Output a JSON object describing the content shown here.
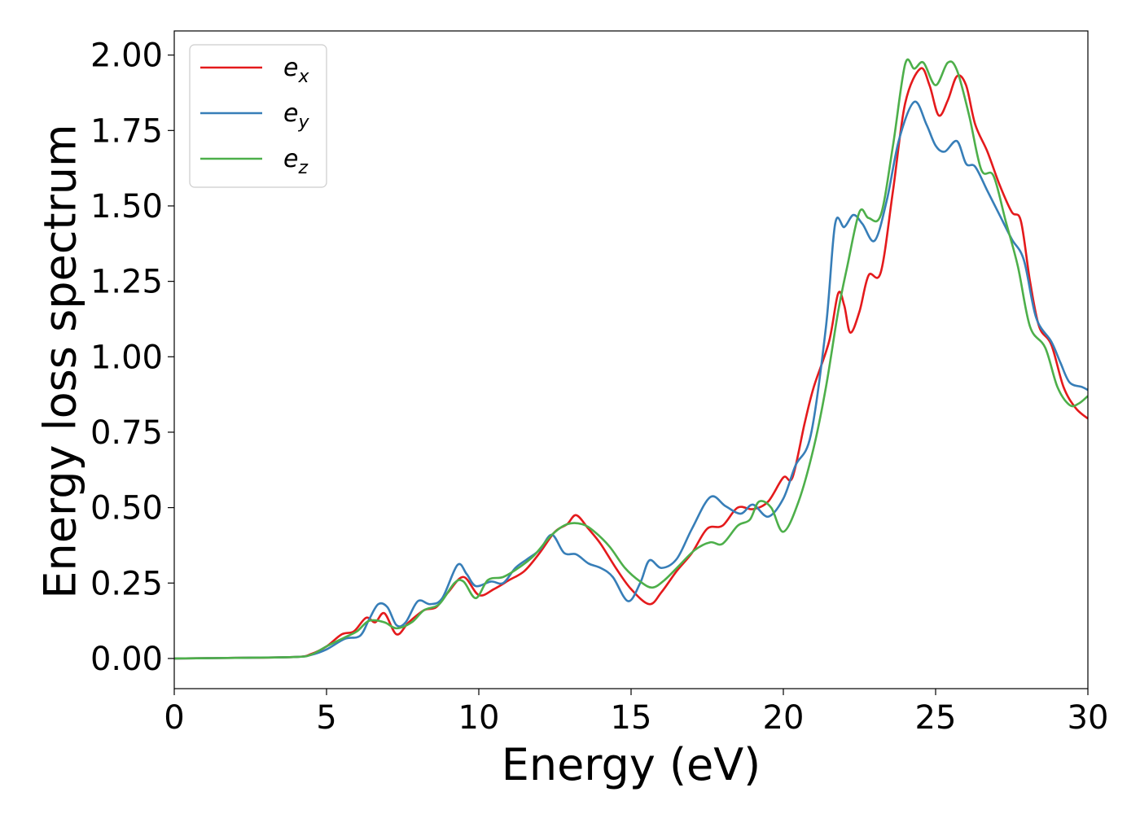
{
  "chart_data": {
    "type": "line",
    "title": "",
    "xlabel": "Energy (eV)",
    "ylabel": "Energy loss spectrum",
    "xlim": [
      0,
      30
    ],
    "ylim": [
      -0.1,
      2.08
    ],
    "xticks": [
      0,
      5,
      10,
      15,
      20,
      25,
      30
    ],
    "yticks": [
      0.0,
      0.25,
      0.5,
      0.75,
      1.0,
      1.25,
      1.5,
      1.75,
      2.0
    ],
    "xtick_labels": [
      "0",
      "5",
      "10",
      "15",
      "20",
      "25",
      "30"
    ],
    "ytick_labels": [
      "0.00",
      "0.25",
      "0.50",
      "0.75",
      "1.00",
      "1.25",
      "1.50",
      "1.75",
      "2.00"
    ],
    "grid": false,
    "legend_position": "top-left",
    "series": [
      {
        "name": "ex",
        "legend_base": "e",
        "legend_sub": "x",
        "color": "#e41a1c",
        "points": [
          [
            0,
            0
          ],
          [
            2,
            0.002
          ],
          [
            4,
            0.005
          ],
          [
            4.5,
            0.015
          ],
          [
            5,
            0.04
          ],
          [
            5.5,
            0.08
          ],
          [
            5.9,
            0.09
          ],
          [
            6.3,
            0.135
          ],
          [
            6.6,
            0.12
          ],
          [
            6.9,
            0.15
          ],
          [
            7.3,
            0.08
          ],
          [
            7.7,
            0.12
          ],
          [
            8.2,
            0.16
          ],
          [
            8.6,
            0.17
          ],
          [
            9,
            0.22
          ],
          [
            9.5,
            0.27
          ],
          [
            10,
            0.21
          ],
          [
            10.5,
            0.23
          ],
          [
            11,
            0.26
          ],
          [
            11.5,
            0.29
          ],
          [
            12,
            0.35
          ],
          [
            12.5,
            0.42
          ],
          [
            12.9,
            0.445
          ],
          [
            13.2,
            0.475
          ],
          [
            13.6,
            0.43
          ],
          [
            14,
            0.38
          ],
          [
            14.5,
            0.3
          ],
          [
            15,
            0.23
          ],
          [
            15.6,
            0.18
          ],
          [
            16,
            0.22
          ],
          [
            16.5,
            0.29
          ],
          [
            17,
            0.35
          ],
          [
            17.5,
            0.43
          ],
          [
            18,
            0.44
          ],
          [
            18.5,
            0.5
          ],
          [
            19,
            0.495
          ],
          [
            19.5,
            0.52
          ],
          [
            20,
            0.6
          ],
          [
            20.3,
            0.6
          ],
          [
            20.7,
            0.78
          ],
          [
            21,
            0.9
          ],
          [
            21.5,
            1.05
          ],
          [
            21.8,
            1.21
          ],
          [
            22,
            1.17
          ],
          [
            22.2,
            1.08
          ],
          [
            22.5,
            1.15
          ],
          [
            22.8,
            1.27
          ],
          [
            23.2,
            1.28
          ],
          [
            23.6,
            1.55
          ],
          [
            24,
            1.84
          ],
          [
            24.5,
            1.955
          ],
          [
            24.8,
            1.9
          ],
          [
            25.1,
            1.8
          ],
          [
            25.4,
            1.85
          ],
          [
            25.7,
            1.93
          ],
          [
            26,
            1.9
          ],
          [
            26.3,
            1.77
          ],
          [
            26.7,
            1.68
          ],
          [
            27.1,
            1.57
          ],
          [
            27.5,
            1.48
          ],
          [
            27.8,
            1.45
          ],
          [
            28.1,
            1.25
          ],
          [
            28.4,
            1.1
          ],
          [
            28.8,
            1.04
          ],
          [
            29.2,
            0.9
          ],
          [
            29.6,
            0.83
          ],
          [
            30,
            0.795
          ]
        ]
      },
      {
        "name": "ey",
        "legend_base": "e",
        "legend_sub": "y",
        "color": "#377eb8",
        "points": [
          [
            0,
            0
          ],
          [
            2,
            0.002
          ],
          [
            4,
            0.005
          ],
          [
            4.5,
            0.012
          ],
          [
            5,
            0.03
          ],
          [
            5.6,
            0.065
          ],
          [
            6.1,
            0.075
          ],
          [
            6.4,
            0.13
          ],
          [
            6.7,
            0.18
          ],
          [
            7.0,
            0.17
          ],
          [
            7.3,
            0.11
          ],
          [
            7.6,
            0.12
          ],
          [
            8.0,
            0.19
          ],
          [
            8.4,
            0.18
          ],
          [
            8.8,
            0.2
          ],
          [
            9.3,
            0.31
          ],
          [
            9.6,
            0.28
          ],
          [
            9.9,
            0.24
          ],
          [
            10.4,
            0.255
          ],
          [
            10.8,
            0.25
          ],
          [
            11.2,
            0.3
          ],
          [
            11.6,
            0.33
          ],
          [
            12,
            0.36
          ],
          [
            12.4,
            0.41
          ],
          [
            12.8,
            0.35
          ],
          [
            13.2,
            0.345
          ],
          [
            13.6,
            0.315
          ],
          [
            14.0,
            0.3
          ],
          [
            14.4,
            0.27
          ],
          [
            14.9,
            0.19
          ],
          [
            15.3,
            0.25
          ],
          [
            15.6,
            0.325
          ],
          [
            16.0,
            0.3
          ],
          [
            16.5,
            0.33
          ],
          [
            17.0,
            0.43
          ],
          [
            17.6,
            0.535
          ],
          [
            18.1,
            0.505
          ],
          [
            18.6,
            0.48
          ],
          [
            19.0,
            0.51
          ],
          [
            19.5,
            0.47
          ],
          [
            20.0,
            0.53
          ],
          [
            20.4,
            0.64
          ],
          [
            20.9,
            0.74
          ],
          [
            21.4,
            1.1
          ],
          [
            21.7,
            1.44
          ],
          [
            22.0,
            1.43
          ],
          [
            22.3,
            1.47
          ],
          [
            22.6,
            1.44
          ],
          [
            23.0,
            1.385
          ],
          [
            23.4,
            1.52
          ],
          [
            23.8,
            1.72
          ],
          [
            24.3,
            1.845
          ],
          [
            24.7,
            1.77
          ],
          [
            25.0,
            1.7
          ],
          [
            25.3,
            1.68
          ],
          [
            25.7,
            1.715
          ],
          [
            26.0,
            1.64
          ],
          [
            26.3,
            1.63
          ],
          [
            26.7,
            1.55
          ],
          [
            27.1,
            1.47
          ],
          [
            27.5,
            1.39
          ],
          [
            27.9,
            1.32
          ],
          [
            28.3,
            1.13
          ],
          [
            28.8,
            1.05
          ],
          [
            29.1,
            0.98
          ],
          [
            29.4,
            0.915
          ],
          [
            29.8,
            0.9
          ],
          [
            30,
            0.89
          ]
        ]
      },
      {
        "name": "ez",
        "legend_base": "e",
        "legend_sub": "z",
        "color": "#4daf4a",
        "points": [
          [
            0,
            0
          ],
          [
            2,
            0.002
          ],
          [
            4,
            0.005
          ],
          [
            4.5,
            0.013
          ],
          [
            5,
            0.04
          ],
          [
            5.6,
            0.07
          ],
          [
            6.0,
            0.09
          ],
          [
            6.4,
            0.125
          ],
          [
            6.9,
            0.12
          ],
          [
            7.3,
            0.1
          ],
          [
            7.8,
            0.12
          ],
          [
            8.2,
            0.16
          ],
          [
            8.7,
            0.18
          ],
          [
            9.2,
            0.25
          ],
          [
            9.5,
            0.255
          ],
          [
            9.9,
            0.2
          ],
          [
            10.3,
            0.26
          ],
          [
            10.8,
            0.27
          ],
          [
            11.3,
            0.3
          ],
          [
            11.8,
            0.34
          ],
          [
            12.4,
            0.41
          ],
          [
            12.9,
            0.445
          ],
          [
            13.4,
            0.445
          ],
          [
            13.8,
            0.42
          ],
          [
            14.3,
            0.37
          ],
          [
            14.8,
            0.3
          ],
          [
            15.3,
            0.255
          ],
          [
            15.7,
            0.235
          ],
          [
            16.1,
            0.26
          ],
          [
            16.6,
            0.31
          ],
          [
            17.1,
            0.36
          ],
          [
            17.6,
            0.385
          ],
          [
            18.0,
            0.38
          ],
          [
            18.5,
            0.44
          ],
          [
            18.9,
            0.46
          ],
          [
            19.2,
            0.52
          ],
          [
            19.6,
            0.5
          ],
          [
            20.0,
            0.42
          ],
          [
            20.5,
            0.52
          ],
          [
            21.0,
            0.7
          ],
          [
            21.4,
            0.9
          ],
          [
            21.8,
            1.15
          ],
          [
            22.1,
            1.3
          ],
          [
            22.5,
            1.48
          ],
          [
            22.8,
            1.46
          ],
          [
            23.2,
            1.47
          ],
          [
            23.6,
            1.7
          ],
          [
            24.0,
            1.97
          ],
          [
            24.3,
            1.955
          ],
          [
            24.6,
            1.975
          ],
          [
            25.0,
            1.9
          ],
          [
            25.4,
            1.975
          ],
          [
            25.7,
            1.95
          ],
          [
            26.1,
            1.8
          ],
          [
            26.5,
            1.62
          ],
          [
            26.9,
            1.6
          ],
          [
            27.3,
            1.45
          ],
          [
            27.7,
            1.3
          ],
          [
            28.1,
            1.1
          ],
          [
            28.6,
            1.03
          ],
          [
            29.0,
            0.9
          ],
          [
            29.4,
            0.84
          ],
          [
            29.7,
            0.845
          ],
          [
            30,
            0.87
          ]
        ]
      }
    ]
  }
}
